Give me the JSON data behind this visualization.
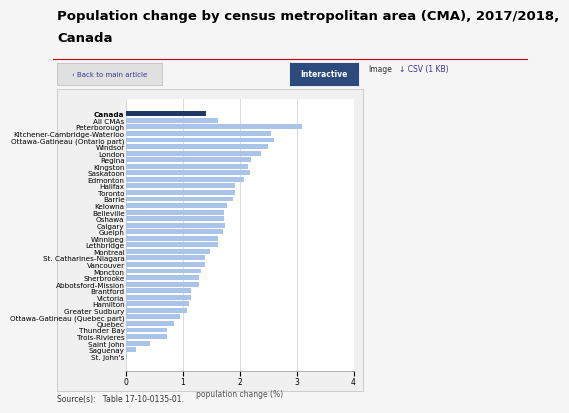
{
  "title_line1": "Population change by census metropolitan area (CMA), 2017/2018,",
  "title_line2": "Canada",
  "xlabel": "population change (%)",
  "source": "Source(s):   Table 17-10-0135-01.",
  "back_btn": "‹ Back to main article",
  "btn_interactive": "Interactive",
  "btn_image": "Image",
  "btn_csv": "↓ CSV (1 KB)",
  "categories": [
    "Canada",
    "All CMAs",
    "Peterborough",
    "Kitchener-Cambridge-Waterloo",
    "Ottawa-Gatineau (Ontario part)",
    "Windsor",
    "London",
    "Regina",
    "Kingston",
    "Saskatoon",
    "Edmonton",
    "Halifax",
    "Toronto",
    "Barrie",
    "Kelowna",
    "Belleville",
    "Oshawa",
    "Calgary",
    "Guelph",
    "Winnipeg",
    "Lethbridge",
    "Montreal",
    "St. Catharines-Niagara",
    "Vancouver",
    "Moncton",
    "Sherbrooke",
    "Abbotsford-Mission",
    "Brantford",
    "Victoria",
    "Hamilton",
    "Greater Sudbury",
    "Ottawa-Gatineau (Quebec part)",
    "Quebec",
    "Thunder Bay",
    "Trois-Rivieres",
    "Saint John",
    "Saguenay",
    "St. John's"
  ],
  "values": [
    1.4,
    1.62,
    3.1,
    2.55,
    2.6,
    2.5,
    2.38,
    2.2,
    2.15,
    2.18,
    2.08,
    1.92,
    1.92,
    1.88,
    1.78,
    1.72,
    1.72,
    1.74,
    1.7,
    1.62,
    1.62,
    1.48,
    1.38,
    1.38,
    1.32,
    1.28,
    1.28,
    1.15,
    1.15,
    1.1,
    1.08,
    0.95,
    0.85,
    0.72,
    0.72,
    0.42,
    0.18,
    0.02
  ],
  "canada_color": "#1f3864",
  "bar_color": "#a9c4e8",
  "page_bg": "#f5f5f5",
  "chart_bg": "#f0f0f0",
  "plot_bg": "#ffffff",
  "border_color": "#cccccc",
  "xlim": [
    0,
    4
  ],
  "xticks": [
    0,
    1,
    2,
    3,
    4
  ],
  "title_fontsize": 9.5,
  "label_fontsize": 5.2,
  "tick_fontsize": 5.5,
  "source_fontsize": 5.5
}
